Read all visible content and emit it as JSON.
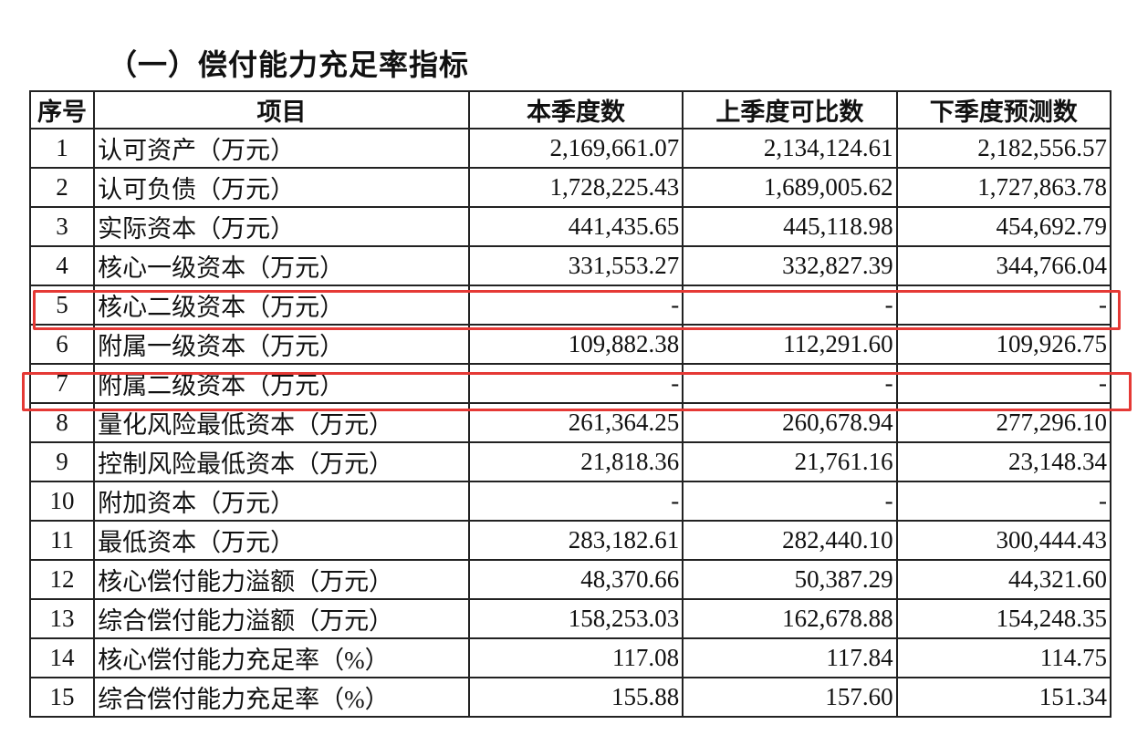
{
  "title": "（一）偿付能力充足率指标",
  "table": {
    "headers": [
      "序号",
      "项目",
      "本季度数",
      "上季度可比数",
      "下季度预测数"
    ],
    "rows": [
      [
        "1",
        "认可资产（万元）",
        "2,169,661.07",
        "2,134,124.61",
        "2,182,556.57"
      ],
      [
        "2",
        "认可负债（万元）",
        "1,728,225.43",
        "1,689,005.62",
        "1,727,863.78"
      ],
      [
        "3",
        "实际资本（万元）",
        "441,435.65",
        "445,118.98",
        "454,692.79"
      ],
      [
        "4",
        "核心一级资本（万元）",
        "331,553.27",
        "332,827.39",
        "344,766.04"
      ],
      [
        "5",
        "核心二级资本（万元）",
        "-",
        "-",
        "-"
      ],
      [
        "6",
        "附属一级资本（万元）",
        "109,882.38",
        "112,291.60",
        "109,926.75"
      ],
      [
        "7",
        "附属二级资本（万元）",
        "-",
        "-",
        "-"
      ],
      [
        "8",
        "量化风险最低资本（万元）",
        "261,364.25",
        "260,678.94",
        "277,296.10"
      ],
      [
        "9",
        "控制风险最低资本（万元）",
        "21,818.36",
        "21,761.16",
        "23,148.34"
      ],
      [
        "10",
        "附加资本（万元）",
        "-",
        "-",
        "-"
      ],
      [
        "11",
        "最低资本（万元）",
        "283,182.61",
        "282,440.10",
        "300,444.43"
      ],
      [
        "12",
        "核心偿付能力溢额（万元）",
        "48,370.66",
        "50,387.29",
        "44,321.60"
      ],
      [
        "13",
        "综合偿付能力溢额（万元）",
        "158,253.03",
        "162,678.88",
        "154,248.35"
      ],
      [
        "14",
        "核心偿付能力充足率（%）",
        "117.08",
        "117.84",
        "114.75"
      ],
      [
        "15",
        "综合偿付能力充足率（%）",
        "155.88",
        "157.60",
        "151.34"
      ]
    ],
    "highlighted_rows": [
      "5",
      "7"
    ],
    "highlight_color": "#e53935"
  }
}
